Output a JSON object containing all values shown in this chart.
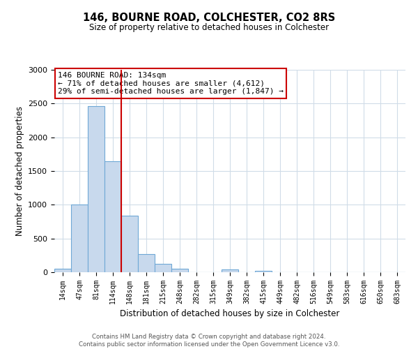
{
  "title": "146, BOURNE ROAD, COLCHESTER, CO2 8RS",
  "subtitle": "Size of property relative to detached houses in Colchester",
  "xlabel": "Distribution of detached houses by size in Colchester",
  "ylabel": "Number of detached properties",
  "bin_labels": [
    "14sqm",
    "47sqm",
    "81sqm",
    "114sqm",
    "148sqm",
    "181sqm",
    "215sqm",
    "248sqm",
    "282sqm",
    "315sqm",
    "349sqm",
    "382sqm",
    "415sqm",
    "449sqm",
    "482sqm",
    "516sqm",
    "549sqm",
    "583sqm",
    "616sqm",
    "650sqm",
    "683sqm"
  ],
  "bar_values": [
    55,
    1000,
    2460,
    1650,
    840,
    270,
    120,
    50,
    0,
    0,
    40,
    0,
    20,
    0,
    0,
    0,
    0,
    0,
    0,
    0,
    0
  ],
  "bar_color": "#c8d9ed",
  "bar_edge_color": "#6fa8d6",
  "vline_pos": 3.5,
  "vline_color": "#cc0000",
  "annotation_title": "146 BOURNE ROAD: 134sqm",
  "annotation_line2": "← 71% of detached houses are smaller (4,612)",
  "annotation_line3": "29% of semi-detached houses are larger (1,847) →",
  "annotation_box_color": "#cc0000",
  "ylim": [
    0,
    3000
  ],
  "yticks": [
    0,
    500,
    1000,
    1500,
    2000,
    2500,
    3000
  ],
  "footer1": "Contains HM Land Registry data © Crown copyright and database right 2024.",
  "footer2": "Contains public sector information licensed under the Open Government Licence v3.0.",
  "bg_color": "#ffffff",
  "grid_color": "#d0dce8"
}
